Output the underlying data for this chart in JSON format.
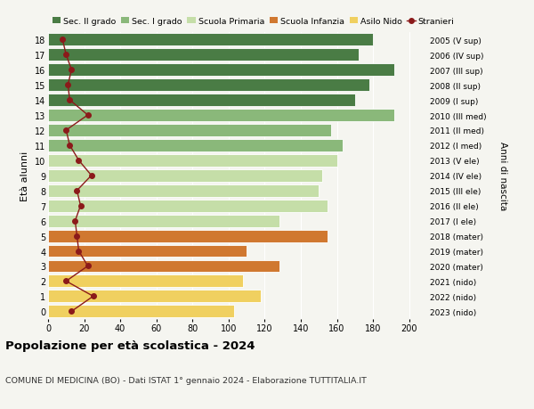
{
  "ages": [
    18,
    17,
    16,
    15,
    14,
    13,
    12,
    11,
    10,
    9,
    8,
    7,
    6,
    5,
    4,
    3,
    2,
    1,
    0
  ],
  "bar_values": [
    180,
    172,
    192,
    178,
    170,
    192,
    157,
    163,
    160,
    152,
    150,
    155,
    128,
    155,
    110,
    128,
    108,
    118,
    103
  ],
  "bar_colors": [
    "#4a7c45",
    "#4a7c45",
    "#4a7c45",
    "#4a7c45",
    "#4a7c45",
    "#8ab87a",
    "#8ab87a",
    "#8ab87a",
    "#c5dea8",
    "#c5dea8",
    "#c5dea8",
    "#c5dea8",
    "#c5dea8",
    "#d07830",
    "#d07830",
    "#d07830",
    "#f0d060",
    "#f0d060",
    "#f0d060"
  ],
  "stranieri_values": [
    8,
    10,
    13,
    11,
    12,
    22,
    10,
    12,
    17,
    24,
    16,
    18,
    15,
    16,
    17,
    22,
    10,
    25,
    13
  ],
  "right_labels": [
    "2005 (V sup)",
    "2006 (IV sup)",
    "2007 (III sup)",
    "2008 (II sup)",
    "2009 (I sup)",
    "2010 (III med)",
    "2011 (II med)",
    "2012 (I med)",
    "2013 (V ele)",
    "2014 (IV ele)",
    "2015 (III ele)",
    "2016 (II ele)",
    "2017 (I ele)",
    "2018 (mater)",
    "2019 (mater)",
    "2020 (mater)",
    "2021 (nido)",
    "2022 (nido)",
    "2023 (nido)"
  ],
  "legend_labels": [
    "Sec. II grado",
    "Sec. I grado",
    "Scuola Primaria",
    "Scuola Infanzia",
    "Asilo Nido",
    "Stranieri"
  ],
  "legend_colors": [
    "#4a7c45",
    "#8ab87a",
    "#c5dea8",
    "#d07830",
    "#f0d060",
    "#8b1a1a"
  ],
  "title": "Popolazione per età scolastica - 2024",
  "subtitle": "COMUNE DI MEDICINA (BO) - Dati ISTAT 1° gennaio 2024 - Elaborazione TUTTITALIA.IT",
  "ylabel": "Età alunni",
  "right_ylabel": "Anni di nascita",
  "xlim": [
    0,
    210
  ],
  "xticks": [
    0,
    20,
    40,
    60,
    80,
    100,
    120,
    140,
    160,
    180,
    200
  ],
  "background_color": "#f5f5f0",
  "stranieri_color": "#8b1a1a"
}
